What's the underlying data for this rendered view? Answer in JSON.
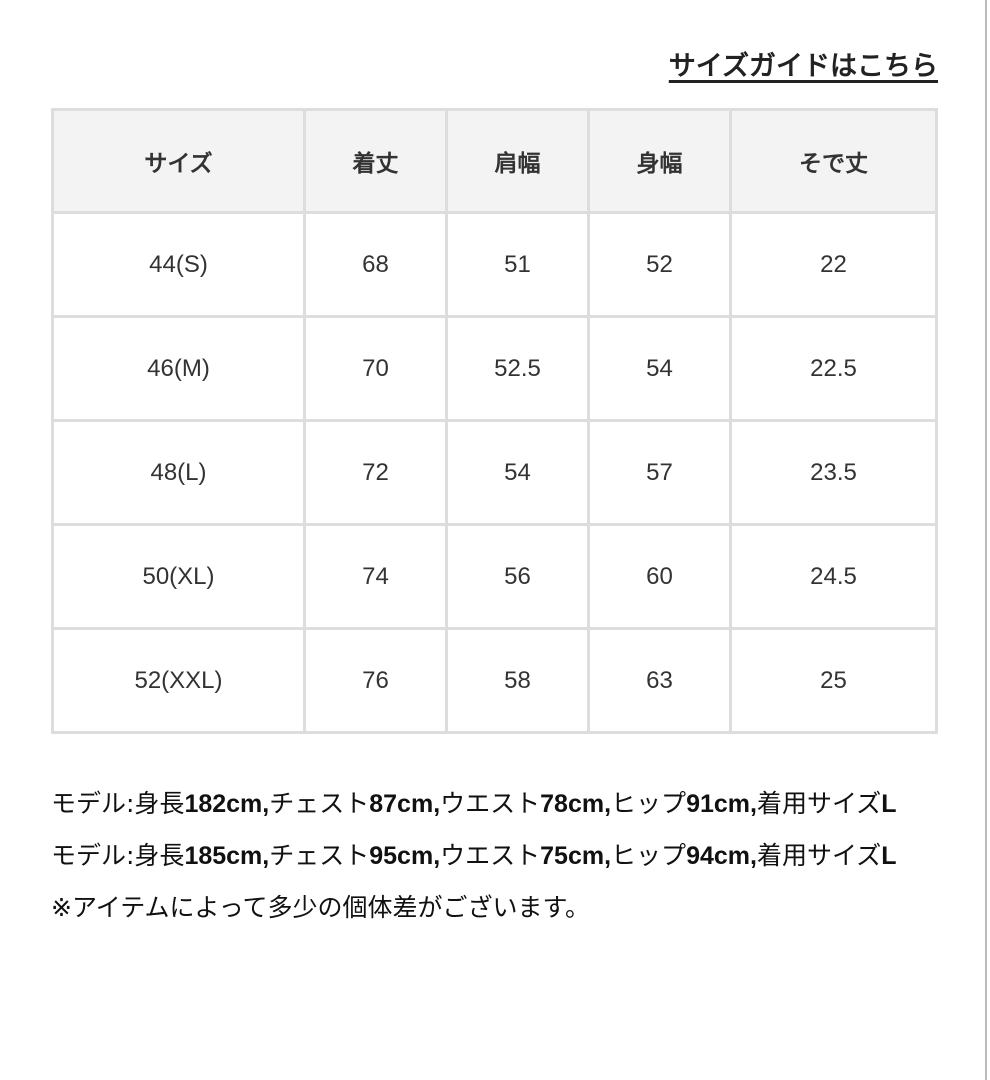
{
  "size_guide_link": "サイズガイドはこちら",
  "table": {
    "headers": [
      "サイズ",
      "着丈",
      "肩幅",
      "身幅",
      "そで丈"
    ],
    "rows": [
      [
        "44(S)",
        "68",
        "51",
        "52",
        "22"
      ],
      [
        "46(M)",
        "70",
        "52.5",
        "54",
        "22.5"
      ],
      [
        "48(L)",
        "72",
        "54",
        "57",
        "23.5"
      ],
      [
        "50(XL)",
        "74",
        "56",
        "60",
        "24.5"
      ],
      [
        "52(XXL)",
        "76",
        "58",
        "63",
        "25"
      ]
    ]
  },
  "notes": [
    "モデル:身長182cm,チェスト87cm,ウエスト78cm,ヒップ91cm,着用サイズL",
    "モデル:身長185cm,チェスト95cm,ウエスト75cm,ヒップ94cm,着用サイズL",
    "※アイテムによって多少の個体差がございます。"
  ]
}
